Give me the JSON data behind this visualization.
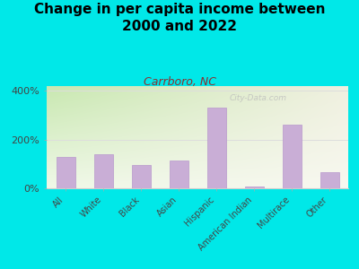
{
  "title": "Change in per capita income between\n2000 and 2022",
  "subtitle": "Carrboro, NC",
  "categories": [
    "All",
    "White",
    "Black",
    "Asian",
    "Hispanic",
    "American Indian",
    "Multirace",
    "Other"
  ],
  "values": [
    130,
    140,
    95,
    115,
    330,
    8,
    260,
    65
  ],
  "bar_color": "#c9aed6",
  "bar_edge_color": "#b898cc",
  "background_outer": "#00e8e8",
  "plot_bg_topleft": "#c8e8b0",
  "plot_bg_bottomright": "#f8f8e8",
  "title_fontsize": 11,
  "title_fontweight": "bold",
  "subtitle_fontsize": 9,
  "subtitle_color": "#8b3030",
  "tick_label_color": "#444444",
  "watermark": "City-Data.com",
  "ylim": [
    0,
    420
  ],
  "ytick_vals": [
    0,
    200,
    400
  ],
  "ytick_labels": [
    "0%",
    "200%",
    "400%"
  ],
  "grid_color": "#dddddd",
  "grid_linewidth": 0.7
}
